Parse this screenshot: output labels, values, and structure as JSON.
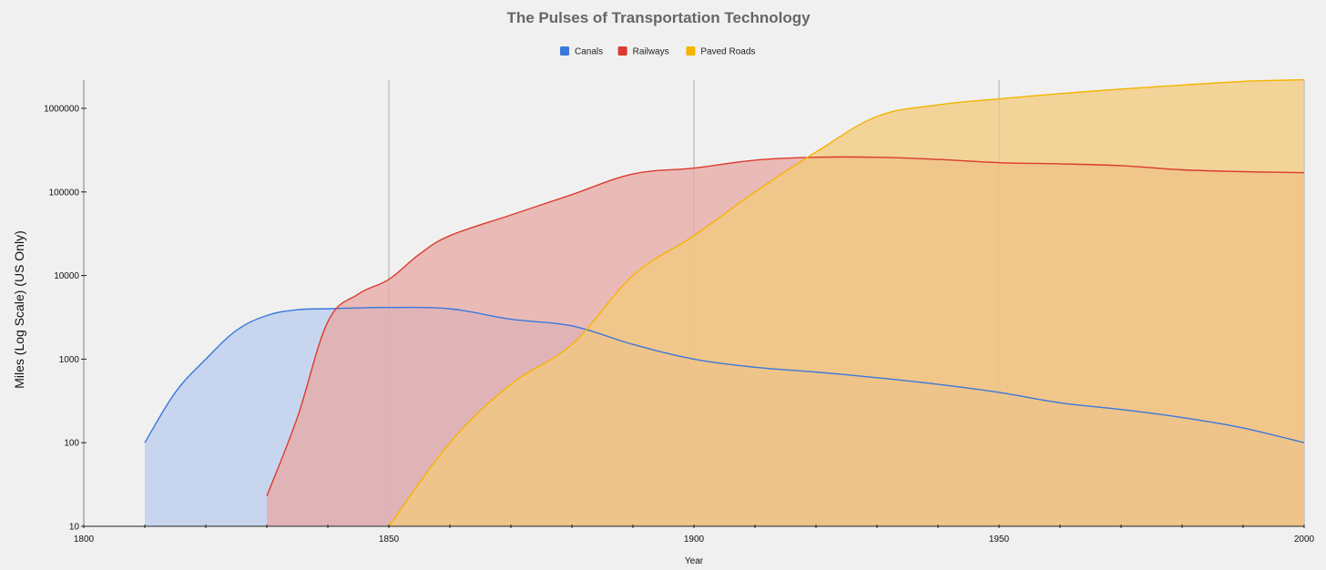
{
  "chart_data": {
    "type": "area",
    "title": "The Pulses of Transportation Technology",
    "xlabel": "Year",
    "ylabel": "Miles (Log Scale) (US Only)",
    "xlim": [
      1800,
      2000
    ],
    "ylim": [
      10,
      2200000
    ],
    "yscale": "log",
    "grid": "vertical major only",
    "legend_position": "top-center",
    "x_ticks": [
      "1800",
      "1850",
      "1900",
      "1950",
      "2000"
    ],
    "y_ticks": [
      "10",
      "100",
      "1000",
      "10000",
      "100000",
      "1000000"
    ],
    "series": [
      {
        "name": "Canals",
        "color": "#3b78dc",
        "fill": "#b9cdee",
        "points": [
          [
            1810,
            100
          ],
          [
            1815,
            400
          ],
          [
            1820,
            1000
          ],
          [
            1825,
            2200
          ],
          [
            1830,
            3326
          ],
          [
            1835,
            3900
          ],
          [
            1840,
            4000
          ],
          [
            1845,
            4100
          ],
          [
            1850,
            4150
          ],
          [
            1860,
            4000
          ],
          [
            1870,
            3000
          ],
          [
            1880,
            2500
          ],
          [
            1890,
            1500
          ],
          [
            1900,
            1000
          ],
          [
            1910,
            800
          ],
          [
            1920,
            700
          ],
          [
            1930,
            600
          ],
          [
            1940,
            500
          ],
          [
            1950,
            400
          ],
          [
            1960,
            300
          ],
          [
            1970,
            250
          ],
          [
            1980,
            200
          ],
          [
            1990,
            150
          ],
          [
            2000,
            100
          ]
        ]
      },
      {
        "name": "Railways",
        "color": "#dc3a2e",
        "fill": "#e8a8a4",
        "points": [
          [
            1830,
            23
          ],
          [
            1835,
            200
          ],
          [
            1840,
            2800
          ],
          [
            1845,
            6000
          ],
          [
            1850,
            9000
          ],
          [
            1855,
            18000
          ],
          [
            1860,
            30000
          ],
          [
            1870,
            53000
          ],
          [
            1880,
            93000
          ],
          [
            1890,
            164000
          ],
          [
            1900,
            193000
          ],
          [
            1910,
            240000
          ],
          [
            1920,
            260000
          ],
          [
            1930,
            260000
          ],
          [
            1940,
            245000
          ],
          [
            1950,
            224000
          ],
          [
            1960,
            217000
          ],
          [
            1970,
            206000
          ],
          [
            1980,
            184000
          ],
          [
            1990,
            175000
          ],
          [
            2000,
            170000
          ]
        ]
      },
      {
        "name": "Paved Roads",
        "color": "#f4b400",
        "fill": "#f3c97b",
        "points": [
          [
            1850,
            10
          ],
          [
            1860,
            100
          ],
          [
            1870,
            500
          ],
          [
            1880,
            1500
          ],
          [
            1890,
            10000
          ],
          [
            1900,
            30000
          ],
          [
            1910,
            100000
          ],
          [
            1920,
            300000
          ],
          [
            1930,
            800000
          ],
          [
            1940,
            1100000
          ],
          [
            1950,
            1300000
          ],
          [
            1960,
            1500000
          ],
          [
            1970,
            1700000
          ],
          [
            1980,
            1900000
          ],
          [
            1990,
            2100000
          ],
          [
            2000,
            2200000
          ]
        ]
      }
    ]
  }
}
